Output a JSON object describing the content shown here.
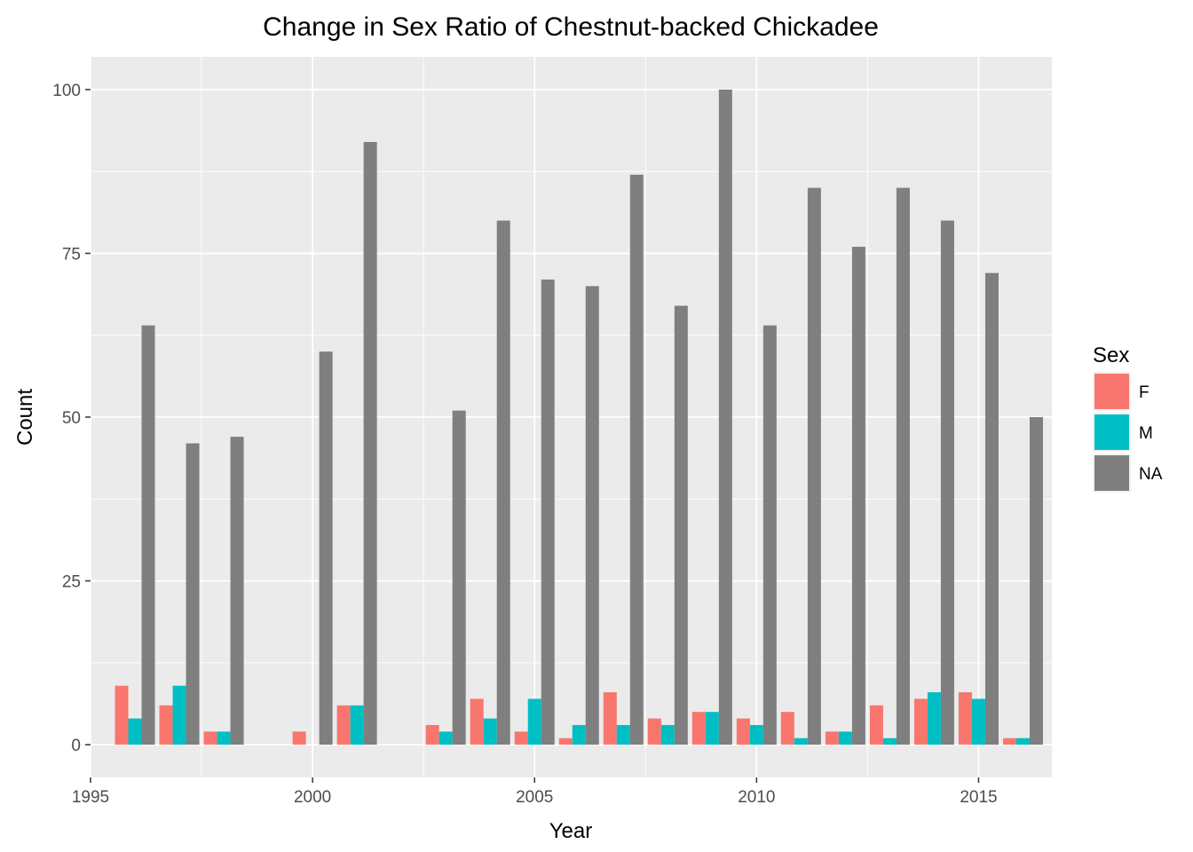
{
  "chart_data": {
    "type": "bar",
    "title": "Change in Sex Ratio of Chestnut-backed Chickadee",
    "xlabel": "Year",
    "ylabel": "Count",
    "x": [
      1996,
      1997,
      1998,
      2000,
      2001,
      2003,
      2004,
      2005,
      2006,
      2007,
      2008,
      2009,
      2010,
      2011,
      2012,
      2013,
      2014,
      2015,
      2016
    ],
    "series": [
      {
        "name": "F",
        "color": "#F8766D",
        "values": [
          9,
          6,
          2,
          2,
          6,
          3,
          7,
          2,
          1,
          8,
          4,
          5,
          4,
          5,
          2,
          6,
          7,
          8,
          1
        ]
      },
      {
        "name": "M",
        "color": "#00BFC4",
        "values": [
          4,
          9,
          2,
          0,
          6,
          2,
          4,
          7,
          3,
          3,
          3,
          5,
          3,
          1,
          2,
          1,
          8,
          7,
          1
        ]
      },
      {
        "name": "NA",
        "color": "#7F7F7F",
        "values": [
          64,
          46,
          47,
          60,
          92,
          51,
          80,
          71,
          70,
          87,
          67,
          100,
          64,
          85,
          76,
          85,
          80,
          72,
          50
        ]
      }
    ],
    "xlim": [
      1995.0,
      2016.65
    ],
    "ylim": [
      -5,
      105
    ],
    "xticks": [
      1995,
      2000,
      2005,
      2010,
      2015
    ],
    "yticks": [
      0,
      25,
      50,
      75,
      100
    ],
    "grid": true,
    "legend": {
      "title": "Sex",
      "position": "right"
    },
    "panel_background": "#EBEBEB",
    "grid_color": "#FFFFFF"
  }
}
